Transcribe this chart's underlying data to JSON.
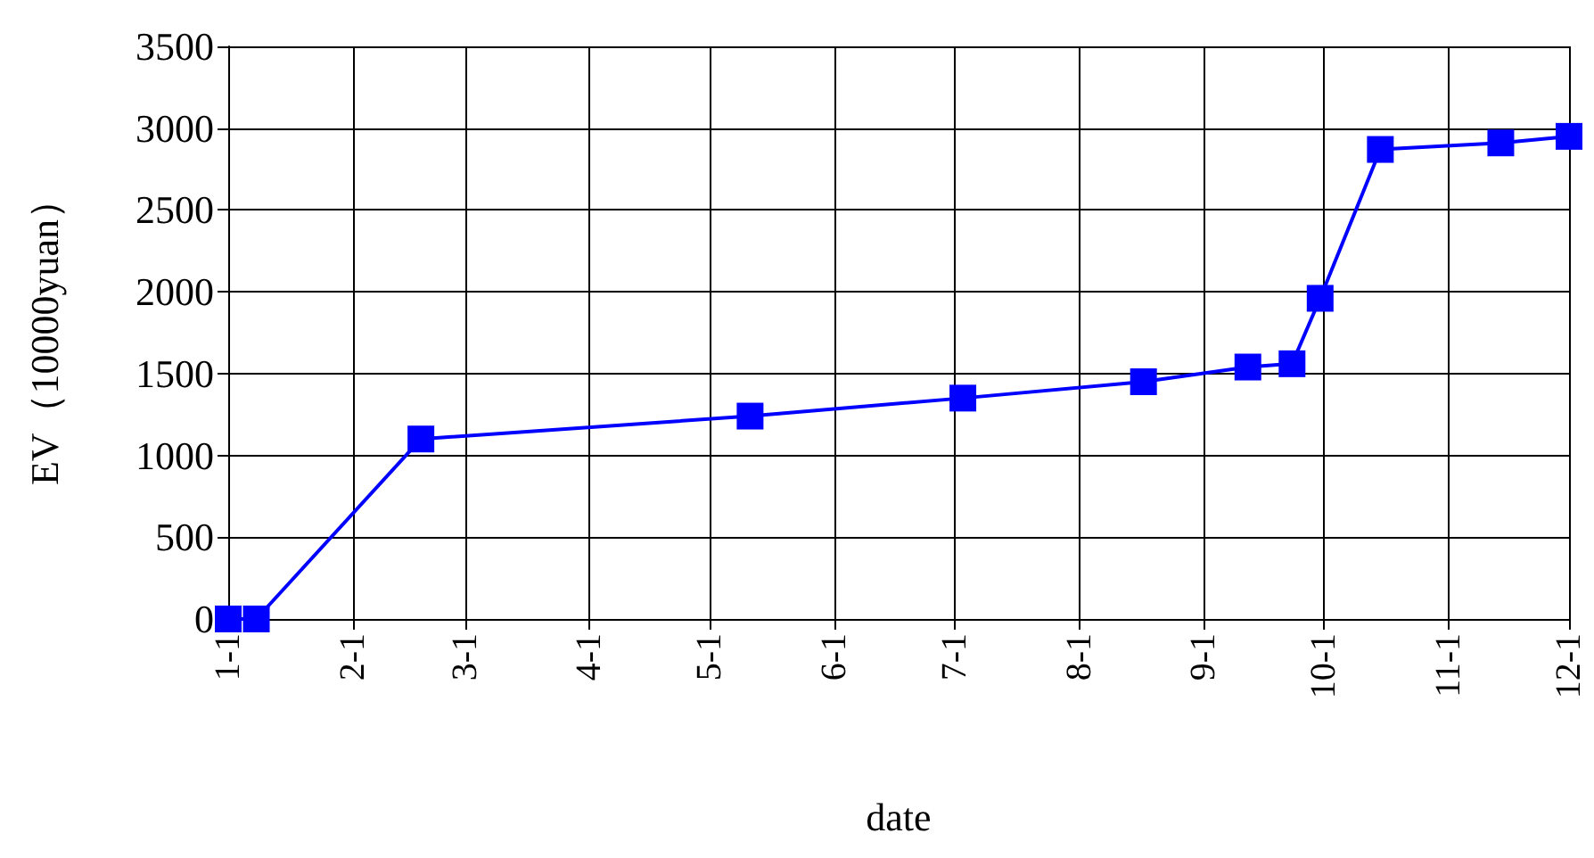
{
  "chart_data": {
    "type": "line",
    "xlabel": "date",
    "ylabel": "EV（10000yuan）",
    "x": [
      "--01-01",
      "--01-08",
      "--02-18",
      "--05-11",
      "--07-03",
      "--08-17",
      "--09-12",
      "--09-23",
      "--09-30",
      "--10-15",
      "--11-14",
      "--12-01"
    ],
    "series": [
      {
        "color": "#0000ff",
        "values": [
          0,
          0,
          1100,
          1240,
          1350,
          1450,
          1540,
          1560,
          1960,
          2870,
          2910,
          2950
        ]
      }
    ],
    "xlim": [
      "--01-01",
      "--12-01"
    ],
    "xticks": [
      {
        "value": "--01-01",
        "label": "1-1"
      },
      {
        "value": "--02-01",
        "label": "2-1"
      },
      {
        "value": "--03-01",
        "label": "3-1"
      },
      {
        "value": "--04-01",
        "label": "4-1"
      },
      {
        "value": "--05-01",
        "label": "5-1"
      },
      {
        "value": "--06-01",
        "label": "6-1"
      },
      {
        "value": "--07-01",
        "label": "7-1"
      },
      {
        "value": "--08-01",
        "label": "8-1"
      },
      {
        "value": "--09-01",
        "label": "9-1"
      },
      {
        "value": "--10-01",
        "label": "10-1"
      },
      {
        "value": "--11-01",
        "label": "11-1"
      },
      {
        "value": "--12-01",
        "label": "12-1"
      }
    ],
    "ylim": [
      0,
      3500
    ],
    "yticks": [
      0,
      500,
      1000,
      1500,
      2000,
      2500,
      3000,
      3500
    ],
    "grid": true,
    "marker": "square",
    "line_style": "solid"
  }
}
